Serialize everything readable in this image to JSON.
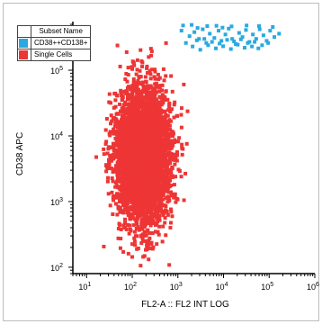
{
  "chart_data": {
    "type": "scatter",
    "xlabel": "FL2-A :: FL2 INT LOG",
    "ylabel": "CD38 APC",
    "xscale": "log",
    "yscale": "log",
    "xlim": [
      5,
      1000000
    ],
    "ylim": [
      80,
      550000
    ],
    "x_ticks": [
      {
        "value": 10,
        "base": "10",
        "exp": "1"
      },
      {
        "value": 100,
        "base": "10",
        "exp": "2"
      },
      {
        "value": 1000,
        "base": "10",
        "exp": "3"
      },
      {
        "value": 10000,
        "base": "10",
        "exp": "4"
      },
      {
        "value": 100000,
        "base": "10",
        "exp": "5"
      },
      {
        "value": 1000000,
        "base": "10",
        "exp": "6"
      }
    ],
    "y_ticks": [
      {
        "value": 100,
        "base": "10",
        "exp": "2"
      },
      {
        "value": 1000,
        "base": "10",
        "exp": "3"
      },
      {
        "value": 10000,
        "base": "10",
        "exp": "4"
      },
      {
        "value": 100000,
        "base": "10",
        "exp": "5"
      }
    ],
    "legend": {
      "placement": "top-left",
      "header": "Subset Name"
    },
    "series": [
      {
        "name": "CD38++CD138+",
        "color": "#29a9e0",
        "points": [
          [
            1200,
            400000
          ],
          [
            1800,
            330000
          ],
          [
            2300,
            380000
          ],
          [
            2900,
            300000
          ],
          [
            3500,
            420000
          ],
          [
            4200,
            260000
          ],
          [
            5000,
            360000
          ],
          [
            6300,
            310000
          ],
          [
            7800,
            400000
          ],
          [
            9000,
            280000
          ],
          [
            11000,
            350000
          ],
          [
            13000,
            430000
          ],
          [
            15500,
            300000
          ],
          [
            18500,
            250000
          ],
          [
            22000,
            370000
          ],
          [
            26000,
            320000
          ],
          [
            31000,
            410000
          ],
          [
            37000,
            270000
          ],
          [
            44000,
            350000
          ],
          [
            52000,
            300000
          ],
          [
            62000,
            420000
          ],
          [
            75000,
            340000
          ],
          [
            88000,
            280000
          ],
          [
            105000,
            400000
          ],
          [
            130000,
            320000
          ],
          [
            165000,
            360000
          ],
          [
            2100,
            230000
          ],
          [
            3100,
            205000
          ],
          [
            4600,
            240000
          ],
          [
            6800,
            215000
          ],
          [
            9800,
            232000
          ],
          [
            14500,
            210000
          ],
          [
            20500,
            245000
          ],
          [
            29000,
            220000
          ],
          [
            42000,
            230000
          ],
          [
            58000,
            215000
          ],
          [
            1500,
            260000
          ],
          [
            2600,
            285000
          ],
          [
            3800,
            300000
          ],
          [
            5600,
            270000
          ],
          [
            8200,
            255000
          ],
          [
            12000,
            290000
          ],
          [
            17000,
            275000
          ],
          [
            24000,
            295000
          ],
          [
            34000,
            260000
          ],
          [
            48000,
            270000
          ],
          [
            70000,
            240000
          ],
          [
            95000,
            260000
          ],
          [
            1300,
            480000
          ],
          [
            2000,
            490000
          ],
          [
            4400,
            470000
          ],
          [
            7000,
            475000
          ],
          [
            15000,
            465000
          ],
          [
            32000,
            480000
          ],
          [
            60000,
            470000
          ],
          [
            120000,
            455000
          ],
          [
            2700,
            440000
          ],
          [
            9500,
            445000
          ]
        ]
      },
      {
        "name": "Single Cells",
        "color": "#ee3535",
        "center": [
          170,
          5000
        ],
        "spread_log10": [
          0.3,
          0.5
        ],
        "count": 4500,
        "seed": 20231
      }
    ]
  }
}
